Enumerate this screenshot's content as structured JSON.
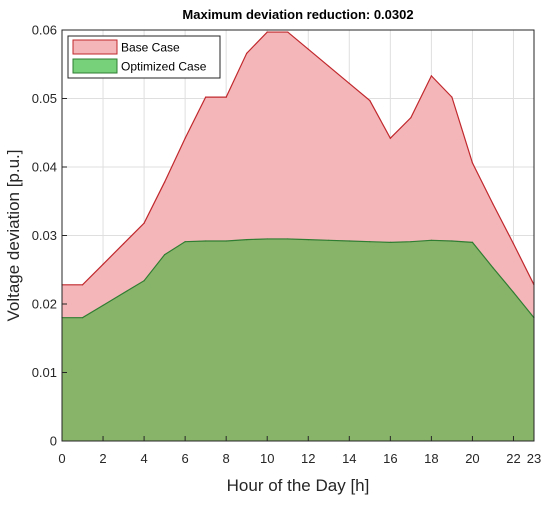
{
  "chart_data": {
    "type": "area",
    "title": "Maximum deviation reduction: 0.0302",
    "xlabel": "Hour of the Day [h]",
    "ylabel": "Voltage deviation [p.u.]",
    "xlim": [
      0,
      23
    ],
    "ylim": [
      0,
      0.06
    ],
    "x": [
      0,
      1,
      2,
      3,
      4,
      5,
      6,
      7,
      8,
      9,
      10,
      11,
      12,
      13,
      14,
      15,
      16,
      17,
      18,
      19,
      20,
      21,
      22,
      23
    ],
    "xticks": [
      0,
      2,
      4,
      6,
      8,
      10,
      12,
      14,
      16,
      18,
      20,
      22,
      23
    ],
    "xtick_labels": [
      "0",
      "2",
      "4",
      "6",
      "8",
      "10",
      "12",
      "14",
      "16",
      "18",
      "20",
      "22",
      "23"
    ],
    "yticks": [
      0,
      0.01,
      0.02,
      0.03,
      0.04,
      0.05,
      0.06
    ],
    "ytick_labels": [
      "0",
      "0.01",
      "0.02",
      "0.03",
      "0.04",
      "0.05",
      "0.06"
    ],
    "grid": true,
    "legend_position": "top-left",
    "series": [
      {
        "name": "Base Case",
        "color": "#f4b6b8",
        "edge_color": "#c0282d",
        "values": [
          0.0228,
          0.0228,
          0.0258,
          0.0288,
          0.0318,
          0.0378,
          0.0442,
          0.0502,
          0.0502,
          0.0566,
          0.0597,
          0.0597,
          0.0572,
          0.0547,
          0.0522,
          0.0497,
          0.0442,
          0.0472,
          0.0533,
          0.0502,
          0.0406,
          0.0346,
          0.0288,
          0.0228
        ]
      },
      {
        "name": "Optimized Case",
        "color": "#88b46a",
        "edge_color": "#2f7d32",
        "legend_color": "#76d17a",
        "values": [
          0.018,
          0.018,
          0.0198,
          0.0216,
          0.0234,
          0.0272,
          0.0291,
          0.0292,
          0.0292,
          0.0294,
          0.0295,
          0.0295,
          0.0294,
          0.0293,
          0.0292,
          0.0291,
          0.029,
          0.0291,
          0.0293,
          0.0292,
          0.029,
          0.0253,
          0.0217,
          0.018
        ]
      }
    ]
  }
}
